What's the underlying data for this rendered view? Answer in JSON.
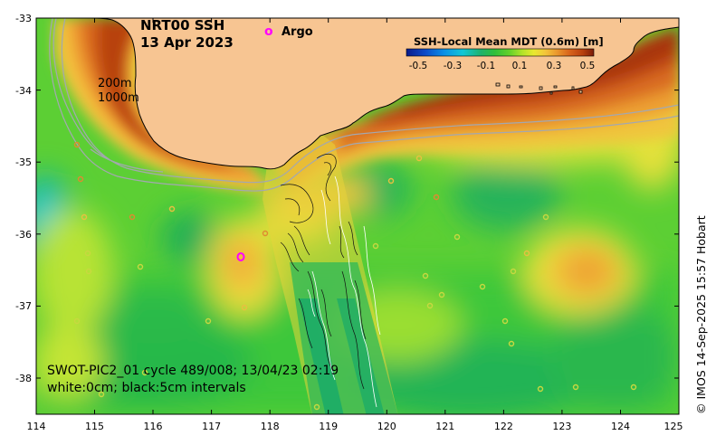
{
  "map": {
    "title": "NRT00 SSH",
    "date": "13 Apr 2023",
    "argo_label": "Argo",
    "argo_marker": "o",
    "isobath_labels": [
      "200m",
      "1000m"
    ],
    "swot_caption": "SWOT-PIC2_01 cycle 489/008; 13/04/23 02:19",
    "contour_caption": "white:0cm; black:5cm intervals",
    "credit": "© IMOS 14-Sep-2025 15:57 Hobart",
    "colorbar": {
      "title": "SSH-Local Mean MDT (0.6m) [m]",
      "ticks": [
        "-0.5",
        "-0.3",
        "-0.1",
        "0.1",
        "0.3",
        "0.5"
      ],
      "colors": [
        "#0a1a8a",
        "#0b49c8",
        "#0a8fe6",
        "#12c7d6",
        "#1fb26a",
        "#2fbf3a",
        "#64d12a",
        "#b4e32a",
        "#e8e830",
        "#f3c63a",
        "#eb9a2e",
        "#d8641c",
        "#b8400e",
        "#7a1c08"
      ]
    },
    "x_axis_ticks": [
      "114",
      "115",
      "116",
      "117",
      "118",
      "119",
      "120",
      "121",
      "122",
      "123",
      "124",
      "125"
    ],
    "y_axis_ticks": [
      "-33",
      "-34",
      "-35",
      "-36",
      "-37",
      "-38"
    ],
    "land_color": "#f7c592",
    "argo_color": "#ff00ff"
  }
}
